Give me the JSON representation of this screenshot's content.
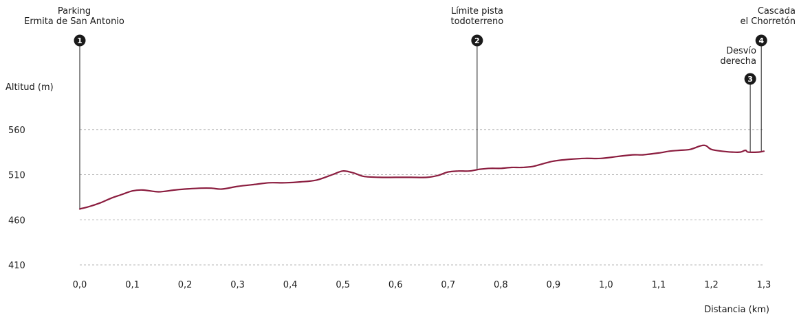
{
  "chart_data": {
    "type": "line",
    "xlabel": "Distancia (km)",
    "ylabel": "Altitud (m)",
    "xlim": [
      0,
      1.3
    ],
    "ylim": [
      400,
      610
    ],
    "grid": "horizontal dashed",
    "x_ticks": [
      "0,0",
      "0,1",
      "0,2",
      "0,3",
      "0,4",
      "0,5",
      "0,6",
      "0,7",
      "0,8",
      "0,9",
      "1,0",
      "1,1",
      "1,2",
      "1,3"
    ],
    "y_ticks": [
      "410",
      "460",
      "510",
      "560"
    ],
    "line_color": "#8b1d3f",
    "series": [
      {
        "x": [
          0.0,
          0.02,
          0.04,
          0.06,
          0.08,
          0.1,
          0.12,
          0.15,
          0.18,
          0.2,
          0.23,
          0.25,
          0.27,
          0.3,
          0.33,
          0.36,
          0.39,
          0.42,
          0.45,
          0.48,
          0.5,
          0.52,
          0.54,
          0.57,
          0.6,
          0.63,
          0.66,
          0.68,
          0.7,
          0.72,
          0.74,
          0.76,
          0.78,
          0.8,
          0.82,
          0.84,
          0.86,
          0.88,
          0.9,
          0.93,
          0.96,
          0.99,
          1.02,
          1.05,
          1.07,
          1.1,
          1.12,
          1.14,
          1.16,
          1.18,
          1.19,
          1.2,
          1.22,
          1.24,
          1.255,
          1.265,
          1.27,
          1.29,
          1.3
        ],
        "y": [
          472,
          475,
          479,
          484,
          488,
          492,
          493,
          491,
          493,
          494,
          495,
          495,
          494,
          497,
          499,
          501,
          501,
          502,
          504,
          510,
          514,
          512,
          508,
          507,
          507,
          507,
          507,
          509,
          513,
          514,
          514,
          516,
          517,
          517,
          518,
          518,
          519,
          522,
          525,
          527,
          528,
          528,
          530,
          532,
          532,
          534,
          536,
          537,
          538,
          542,
          542,
          538,
          536,
          535,
          535,
          537,
          535,
          535,
          536
        ]
      }
    ],
    "waypoints": [
      {
        "number": "1",
        "x": 0.0,
        "label_lines": [
          "Parking",
          "Ermita de San Antonio"
        ]
      },
      {
        "number": "2",
        "x": 0.755,
        "label_lines": [
          "Límite pista",
          "todoterreno"
        ]
      },
      {
        "number": "3",
        "x": 1.274,
        "label_lines": [
          "Desvío",
          "derecha"
        ]
      },
      {
        "number": "4",
        "x": 1.295,
        "label_lines": [
          "Cascada",
          "el Chorretón"
        ]
      }
    ]
  }
}
